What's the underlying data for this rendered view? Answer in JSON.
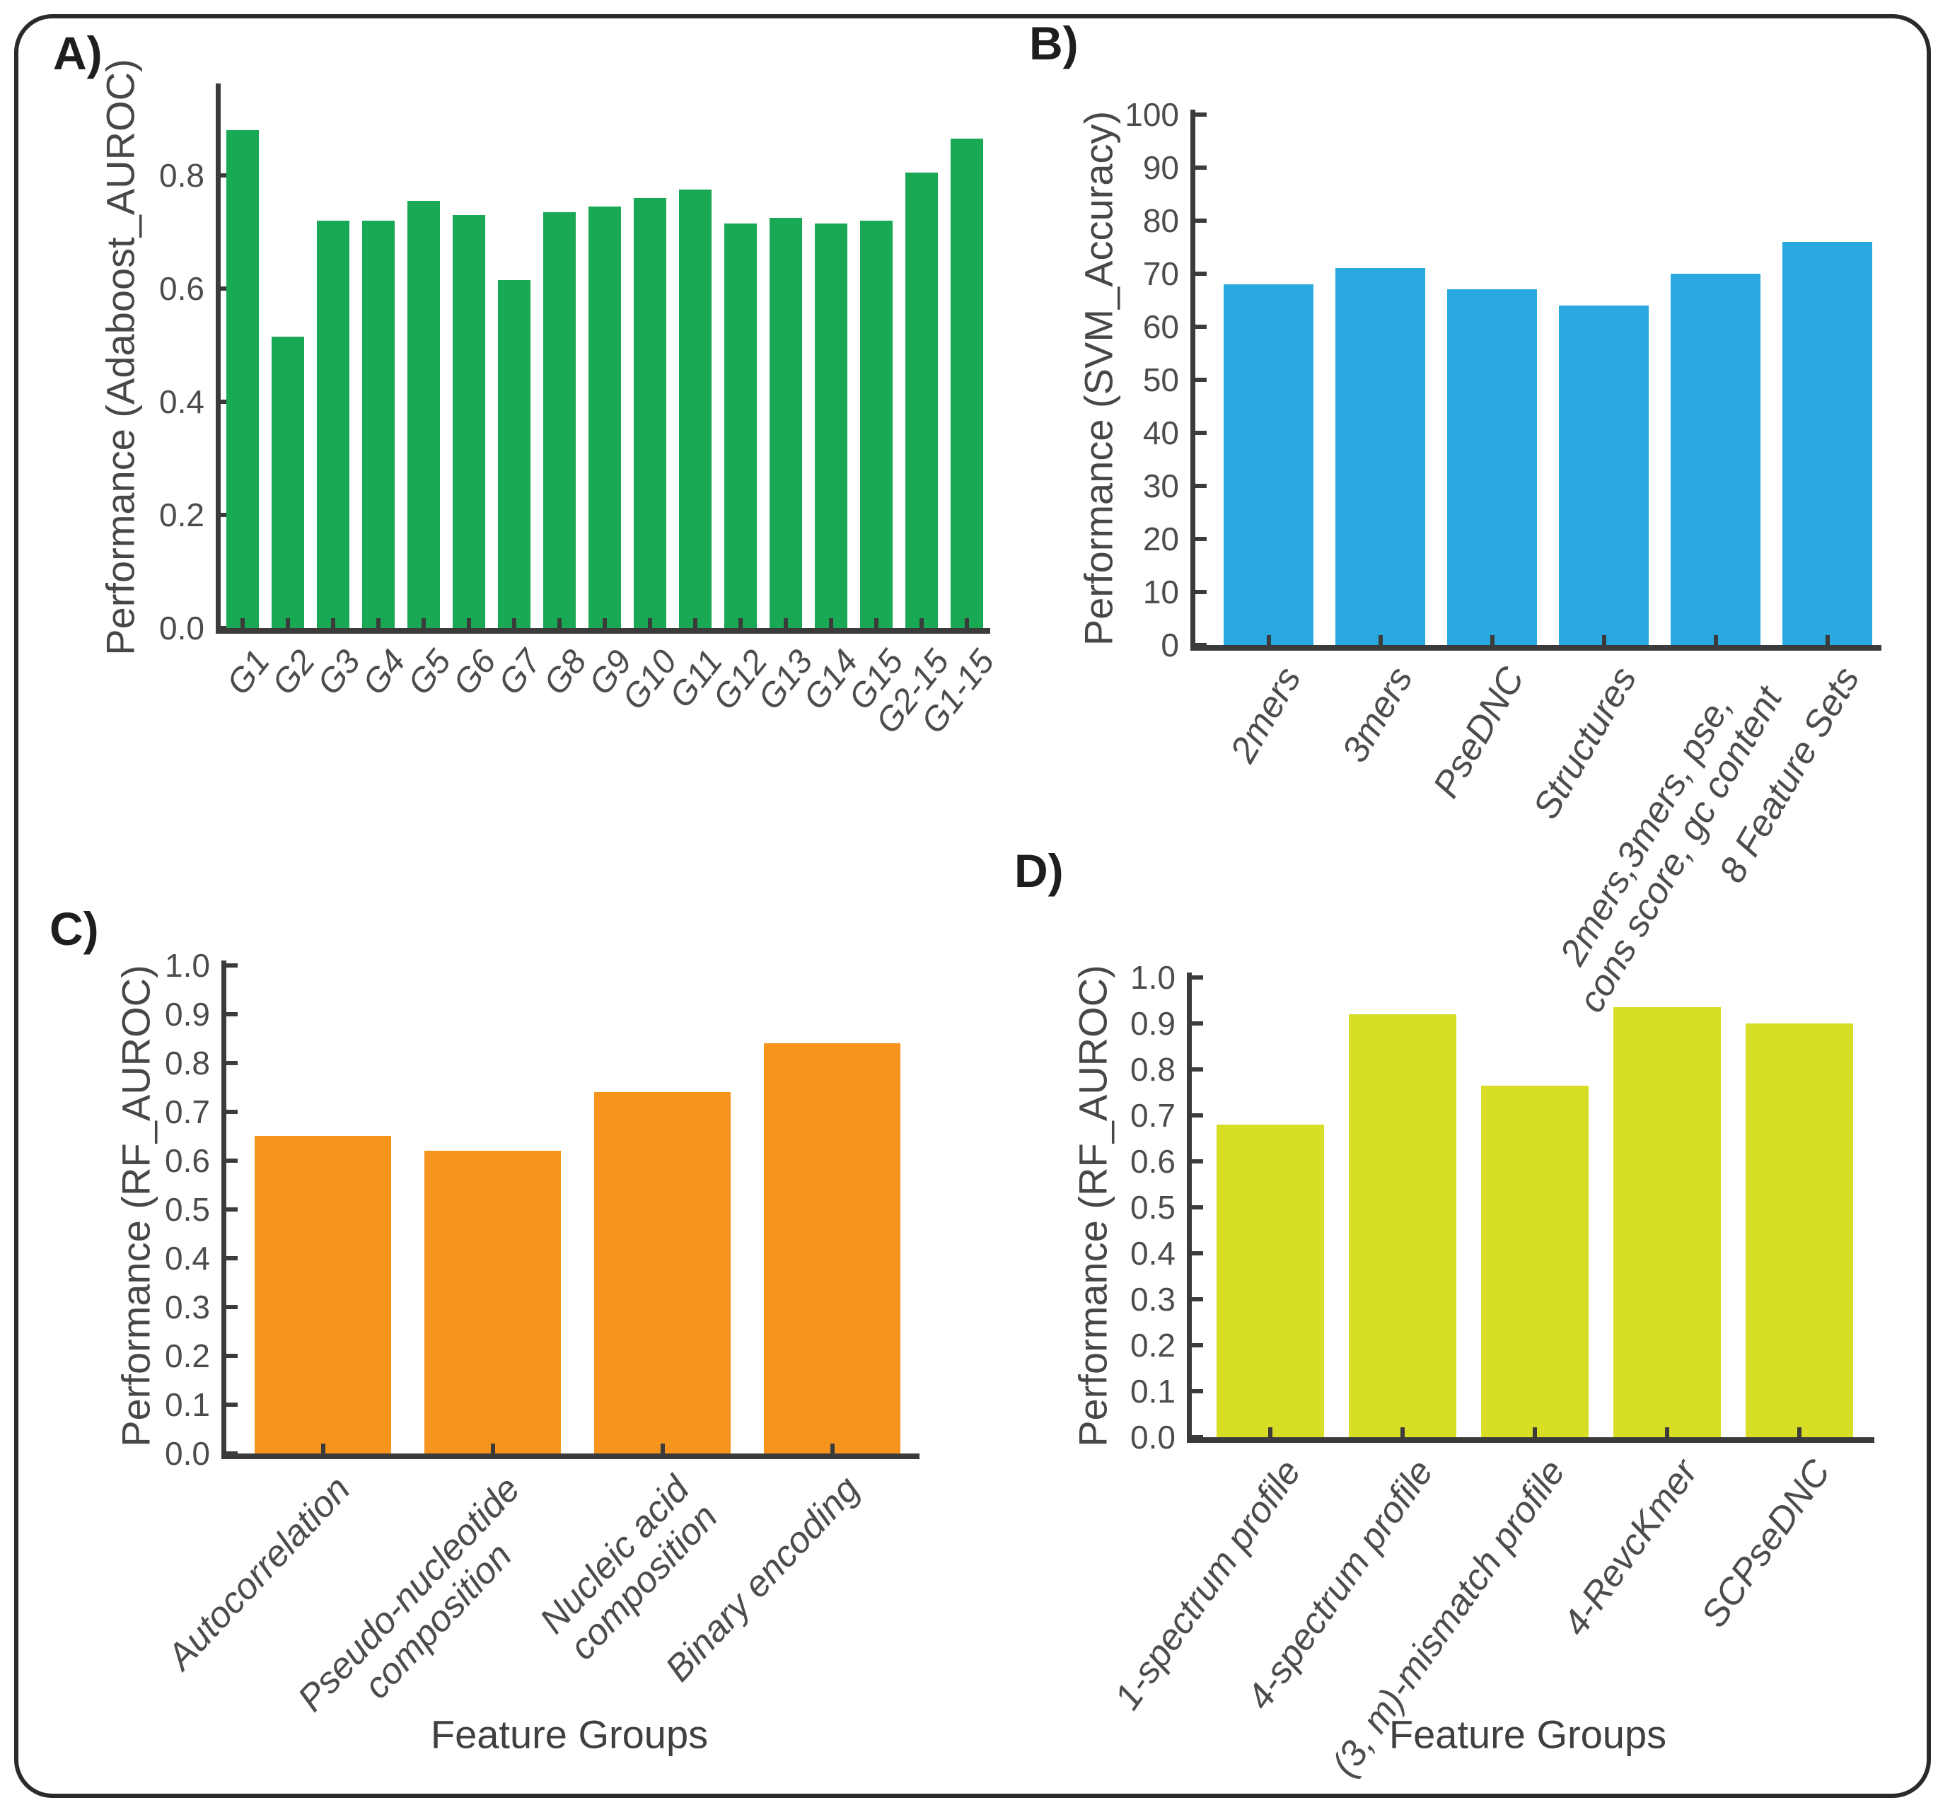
{
  "figure": {
    "background": "#ffffff",
    "border_color": "#2b2a29",
    "axis_color": "#3b3b3b",
    "text_color": "#4c4c4c"
  },
  "chart_data": [
    {
      "id": "A",
      "type": "bar",
      "panel_letter": "A)",
      "title": "",
      "ylabel": "Performance (Adaboost_AUROC)",
      "xlabel": "",
      "bar_color": "#19a853",
      "grid": false,
      "ylim": [
        0,
        0.93
      ],
      "ytick_values": [
        0,
        0.2,
        0.4,
        0.6,
        0.8
      ],
      "ytick_labels": [
        "0.0",
        "0.2",
        "0.4",
        "0.6",
        "0.8"
      ],
      "categories": [
        "G1",
        "G2",
        "G3",
        "G4",
        "G5",
        "G6",
        "G7",
        "G8",
        "G9",
        "G10",
        "G11",
        "G12",
        "G13",
        "G14",
        "G15",
        "G2-15",
        "G1-15"
      ],
      "values": [
        0.88,
        0.515,
        0.72,
        0.72,
        0.755,
        0.73,
        0.615,
        0.735,
        0.745,
        0.76,
        0.775,
        0.715,
        0.725,
        0.715,
        0.72,
        0.805,
        0.865
      ]
    },
    {
      "id": "B",
      "type": "bar",
      "panel_letter": "B)",
      "title": "",
      "ylabel": "Performance (SVM_Accuracy)",
      "xlabel": "",
      "bar_color": "#29a9e0",
      "grid": false,
      "ylim": [
        0,
        100
      ],
      "ytick_values": [
        0,
        10,
        20,
        30,
        40,
        50,
        60,
        70,
        80,
        90,
        100
      ],
      "ytick_labels": [
        "0",
        "10",
        "20",
        "30",
        "40",
        "50",
        "60",
        "70",
        "80",
        "90",
        "100"
      ],
      "categories": [
        "2mers",
        "3mers",
        "PseDNC",
        "Structures",
        "2mers,3mers, pse,\ncons score, gc content",
        "8 Feature Sets"
      ],
      "values": [
        68,
        71,
        67,
        64,
        70,
        76
      ]
    },
    {
      "id": "C",
      "type": "bar",
      "panel_letter": "C)",
      "title": "",
      "ylabel": "Performance (RF_AUROC)",
      "xlabel": "Feature Groups",
      "bar_color": "#f7941e",
      "grid": false,
      "ylim": [
        0,
        1.0
      ],
      "ytick_values": [
        0,
        0.1,
        0.2,
        0.3,
        0.4,
        0.5,
        0.6,
        0.7,
        0.8,
        0.9,
        1.0
      ],
      "ytick_labels": [
        "0.0",
        "0.1",
        "0.2",
        "0.3",
        "0.4",
        "0.5",
        "0.6",
        "0.7",
        "0.8",
        "0.9",
        "1.0"
      ],
      "categories": [
        "Autocorrelation",
        "Pseudo-nucleotide\ncomposition",
        "Nucleic acid\ncomposition",
        "Binary encoding"
      ],
      "values": [
        0.65,
        0.62,
        0.74,
        0.84
      ]
    },
    {
      "id": "D",
      "type": "bar",
      "panel_letter": "D)",
      "title": "",
      "ylabel": "Performance (RF_AUROC)",
      "xlabel": "Feature Groups",
      "bar_color": "#d8de25",
      "grid": false,
      "ylim": [
        0,
        1.0
      ],
      "ytick_values": [
        0,
        0.1,
        0.2,
        0.3,
        0.4,
        0.5,
        0.6,
        0.7,
        0.8,
        0.9,
        1.0
      ],
      "ytick_labels": [
        "0.0",
        "0.1",
        "0.2",
        "0.3",
        "0.4",
        "0.5",
        "0.6",
        "0.7",
        "0.8",
        "0.9",
        "1.0"
      ],
      "categories": [
        "1-spectrum profile",
        "4-spectrum profile",
        "(3, m)-mismatch profile",
        "4-RevcKmer",
        "SCPseDNC"
      ],
      "values": [
        0.68,
        0.92,
        0.765,
        0.935,
        0.9
      ]
    }
  ]
}
